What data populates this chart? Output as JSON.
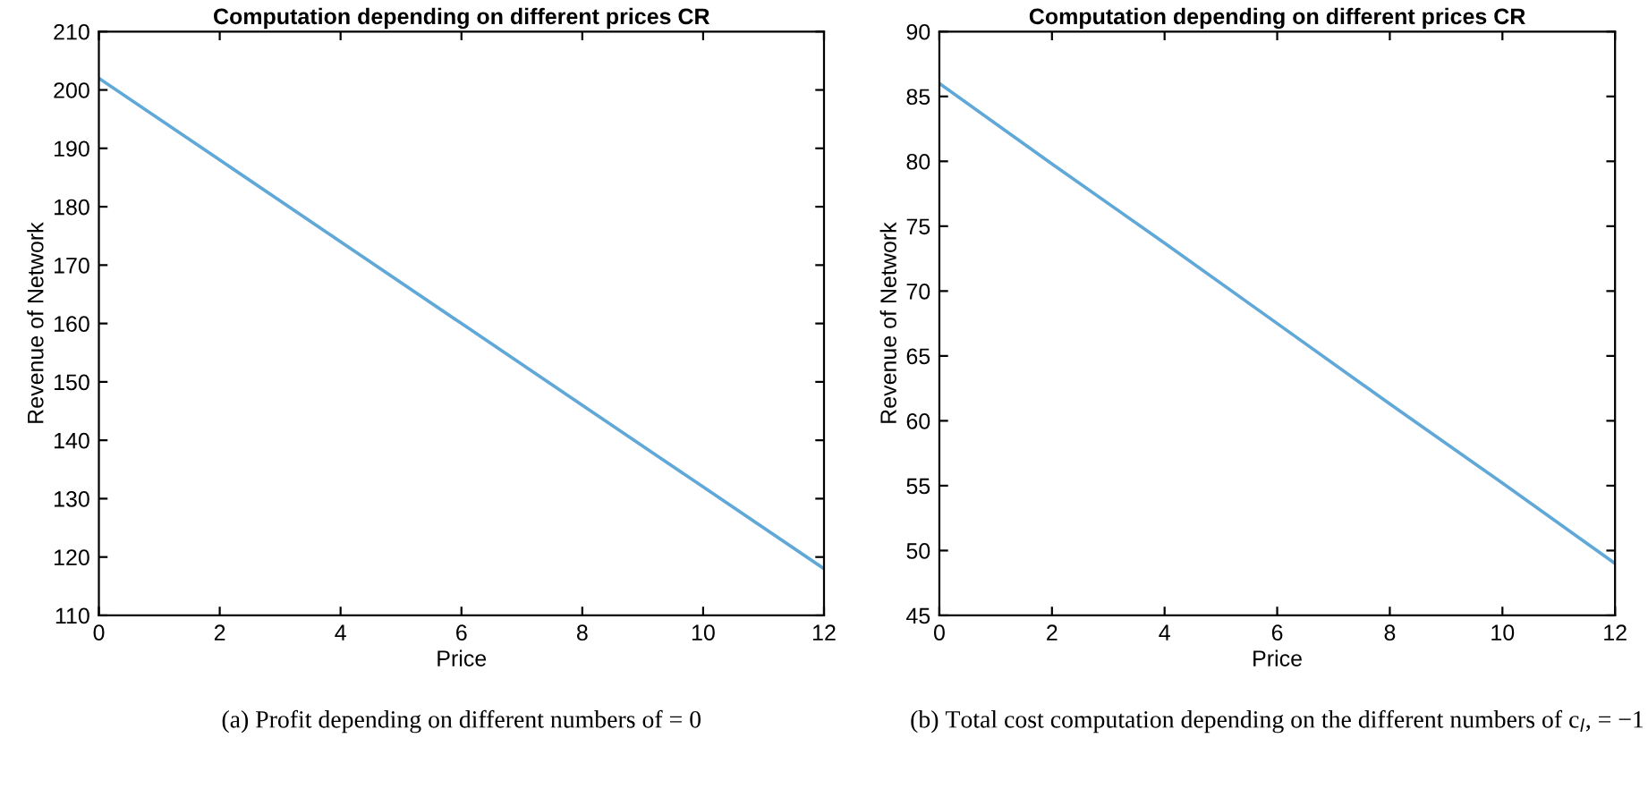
{
  "chart_data": [
    {
      "type": "line",
      "title": "Computation depending on different prices CR",
      "xlabel": "Price",
      "ylabel": "Revenue of Network",
      "x": [
        0,
        2,
        4,
        6,
        8,
        10,
        12
      ],
      "series": [
        {
          "color": "#5fa8d8",
          "values": [
            202,
            188,
            174,
            160,
            146,
            132,
            118
          ]
        }
      ],
      "xlim": [
        0,
        12
      ],
      "ylim": [
        110,
        210
      ],
      "xticks": [
        0,
        2,
        4,
        6,
        8,
        10,
        12
      ],
      "yticks": [
        110,
        120,
        130,
        140,
        150,
        160,
        170,
        180,
        190,
        200,
        210
      ],
      "grid": false,
      "legend": false,
      "annotations": [
        "(a) Profit depending on different numbers of = 0"
      ]
    },
    {
      "type": "line",
      "title": "Computation depending on different prices CR",
      "xlabel": "Price",
      "ylabel": "Revenue of Network",
      "x": [
        0,
        2,
        4,
        6,
        8,
        10,
        12
      ],
      "series": [
        {
          "color": "#5fa8d8",
          "values": [
            86,
            79.8,
            73.7,
            67.5,
            61.3,
            55.2,
            49
          ]
        }
      ],
      "xlim": [
        0,
        12
      ],
      "ylim": [
        45,
        90
      ],
      "xticks": [
        0,
        2,
        4,
        6,
        8,
        10,
        12
      ],
      "yticks": [
        45,
        50,
        55,
        60,
        65,
        70,
        75,
        80,
        85,
        90
      ],
      "grid": false,
      "legend": false,
      "annotations": [
        "(b) Total cost computation depending on the different numbers of c$_{l}$, = −1"
      ]
    }
  ]
}
